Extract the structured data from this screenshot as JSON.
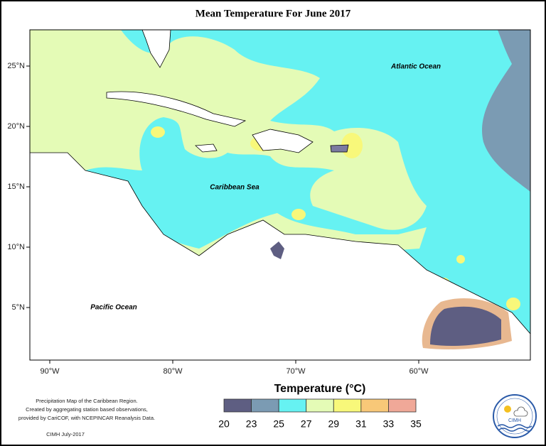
{
  "title": "Mean Temperature For June 2017",
  "map": {
    "labels": [
      "Atlantic Ocean",
      "Caribbean Sea",
      "Pacific Ocean"
    ],
    "lon_ticks": [
      "90°W",
      "80°W",
      "70°W",
      "60°W"
    ],
    "lat_ticks": [
      "25°N",
      "20°N",
      "15°N",
      "10°N",
      "5°N"
    ]
  },
  "legend": {
    "title": "Temperature (°C)",
    "ticks": [
      20,
      23,
      25,
      27,
      29,
      31,
      33,
      35
    ],
    "colors": [
      "#5e5e82",
      "#7b9bb3",
      "#66f2f2",
      "#e4fbb6",
      "#f8f87a",
      "#f8c878",
      "#f0a898"
    ]
  },
  "footnote": {
    "lines": [
      "Precipitation Map of the Caribbean Region.",
      "Created by aggregating station based observations,",
      "provided by CariCOF, with NCEPINCAR Reanalysis Data."
    ],
    "credit": "CIMH July-2017"
  },
  "logo": "CIMH"
}
